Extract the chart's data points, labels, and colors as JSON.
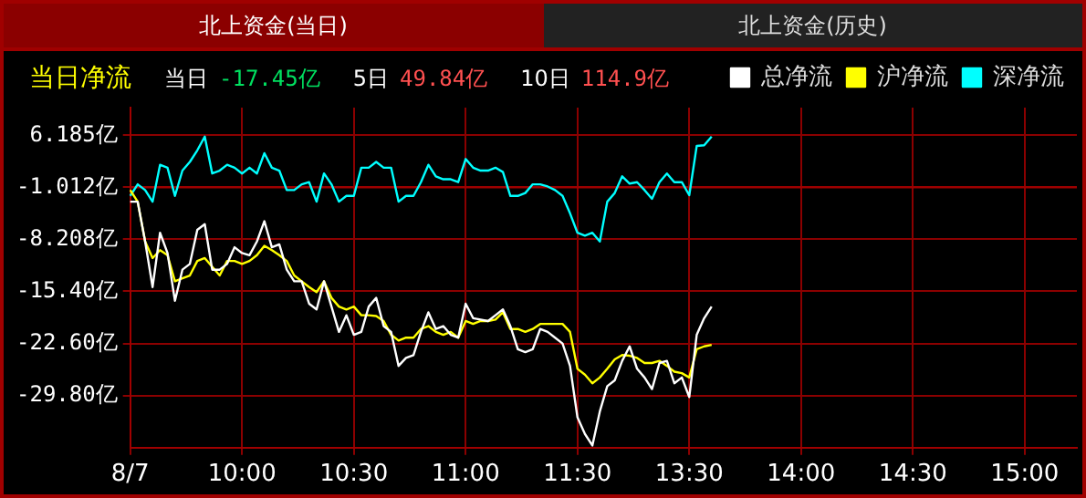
{
  "chart_data": {
    "type": "line",
    "title": "当日净流",
    "annotations": [
      "北上资金(当日)",
      "北上资金(历史)",
      "当日",
      "-17.45亿",
      "5日",
      "49.84亿",
      "10日",
      "114.9亿"
    ],
    "categories": [
      "8/7",
      null,
      null,
      null,
      null,
      null,
      null,
      null,
      null,
      null,
      null,
      null,
      null,
      null,
      null,
      "10:00",
      null,
      null,
      null,
      null,
      null,
      null,
      null,
      null,
      null,
      null,
      null,
      null,
      null,
      null,
      "10:30",
      null,
      null,
      null,
      null,
      null,
      null,
      null,
      null,
      null,
      null,
      null,
      null,
      null,
      null,
      "11:00",
      null,
      null,
      null,
      null,
      null,
      null,
      null,
      null,
      null,
      null,
      null,
      null,
      null,
      null,
      "11:30",
      null,
      null,
      null,
      null,
      null,
      null,
      null,
      null,
      null,
      null,
      null,
      null,
      null,
      null,
      "13:30",
      null,
      null,
      null,
      null,
      null,
      null,
      null,
      null,
      null,
      null,
      null,
      null,
      null,
      null,
      "14:00",
      null,
      null,
      null,
      null,
      null,
      null,
      null,
      null,
      null,
      null,
      null,
      null,
      null,
      null,
      "14:30",
      null,
      null,
      null,
      null,
      null,
      null,
      null,
      null,
      null,
      null,
      null,
      null,
      null,
      null,
      "15:00",
      null,
      null,
      null,
      null,
      null,
      null,
      null
    ],
    "ylim": [
      -37,
      10
    ],
    "yticks": [
      {
        "value": 6.185,
        "label": "6.185亿"
      },
      {
        "value": -1.012,
        "label": "-1.012亿"
      },
      {
        "value": -8.208,
        "label": "-8.208亿"
      },
      {
        "value": -15.4,
        "label": "-15.40亿"
      },
      {
        "value": -22.6,
        "label": "-22.60亿"
      },
      {
        "value": -29.8,
        "label": "-29.80亿"
      }
    ],
    "ref_lines": [
      {
        "axis": "y",
        "value": -1.012,
        "color": "#a00000"
      }
    ],
    "grid": true,
    "legend": "top right",
    "marker": "none",
    "line_style": "solid",
    "series": [
      {
        "name": "总净流",
        "color": "#ffffff",
        "values": [
          -3.0,
          -3.0,
          -8.5,
          -14.8,
          -7.3,
          -10.1,
          -16.7,
          -12.4,
          -11.6,
          -6.9,
          -6.1,
          -12.4,
          -12.4,
          -11.6,
          -9.3,
          -10.1,
          -10.4,
          -8.5,
          -5.7,
          -9.3,
          -8.9,
          -12.4,
          -14.0,
          -14.0,
          -17.1,
          -17.9,
          -14.0,
          -17.5,
          -21.0,
          -18.7,
          -21.4,
          -21.0,
          -17.5,
          -16.3,
          -20.2,
          -21.0,
          -25.7,
          -24.6,
          -24.2,
          -21.0,
          -18.3,
          -20.6,
          -20.2,
          -21.4,
          -21.8,
          -17.1,
          -19.1,
          -19.3,
          -19.5,
          -18.7,
          -17.9,
          -20.2,
          -23.4,
          -23.8,
          -23.4,
          -20.6,
          -21.0,
          -21.8,
          -22.6,
          -25.7,
          -32.8,
          -35.1,
          -36.7,
          -32.0,
          -28.5,
          -27.7,
          -25.0,
          -23.0,
          -26.1,
          -27.3,
          -28.9,
          -25.3,
          -25.0,
          -28.1,
          -27.3,
          -30.0,
          -21.4,
          -19.1,
          -17.5,
          null,
          null,
          null,
          null,
          null,
          null,
          null,
          null,
          null,
          null,
          null,
          null,
          null,
          null,
          null,
          null,
          null,
          null,
          null,
          null,
          null,
          null,
          null,
          null,
          null,
          null,
          null,
          null,
          null,
          null,
          null,
          null,
          null,
          null,
          null,
          null,
          null,
          null,
          null,
          null,
          null,
          null,
          null,
          null,
          null,
          null,
          null,
          null,
          null
        ]
      },
      {
        "name": "沪净流",
        "color": "#ffff00",
        "values": [
          -1.4,
          -3.0,
          -8.5,
          -10.8,
          -9.7,
          -10.4,
          -14.0,
          -13.6,
          -13.2,
          -11.2,
          -10.8,
          -12.0,
          -13.2,
          -11.2,
          -11.2,
          -11.6,
          -11.2,
          -10.4,
          -9.1,
          -9.7,
          -10.4,
          -11.2,
          -13.2,
          -14.0,
          -14.8,
          -15.5,
          -14.0,
          -16.3,
          -17.5,
          -17.9,
          -17.5,
          -18.7,
          -18.7,
          -18.8,
          -19.5,
          -21.4,
          -22.2,
          -21.8,
          -21.8,
          -20.6,
          -20.2,
          -21.0,
          -21.4,
          -21.0,
          -21.8,
          -19.5,
          -19.9,
          -19.5,
          -19.5,
          -19.3,
          -18.3,
          -20.6,
          -20.6,
          -21.0,
          -20.6,
          -19.9,
          -19.9,
          -19.9,
          -19.9,
          -21.0,
          -26.1,
          -26.9,
          -28.1,
          -27.3,
          -26.1,
          -24.8,
          -24.2,
          -24.3,
          -24.6,
          -25.3,
          -25.3,
          -25.0,
          -25.7,
          -26.5,
          -26.7,
          -27.3,
          -23.4,
          -23.0,
          -22.8,
          null,
          null,
          null,
          null,
          null,
          null,
          null,
          null,
          null,
          null,
          null,
          null,
          null,
          null,
          null,
          null,
          null,
          null,
          null,
          null,
          null,
          null,
          null,
          null,
          null,
          null,
          null,
          null,
          null,
          null,
          null,
          null,
          null,
          null,
          null,
          null,
          null,
          null,
          null,
          null,
          null,
          null,
          null,
          null,
          null,
          null,
          null,
          null,
          null
        ]
      },
      {
        "name": "深净流",
        "color": "#00ffff",
        "values": [
          -2.2,
          -0.6,
          -1.4,
          -3.0,
          2.1,
          1.7,
          -2.2,
          1.3,
          2.5,
          4.1,
          6.0,
          0.9,
          1.3,
          2.1,
          1.7,
          0.9,
          1.7,
          0.9,
          3.7,
          1.7,
          1.3,
          -1.4,
          -1.4,
          -0.6,
          -0.3,
          -3.0,
          0.9,
          -0.6,
          -3.0,
          -2.2,
          -2.2,
          1.7,
          1.7,
          2.5,
          1.7,
          1.7,
          -3.0,
          -2.2,
          -2.2,
          -0.3,
          2.1,
          0.5,
          0.1,
          0.1,
          -0.3,
          2.9,
          1.7,
          1.3,
          1.3,
          1.7,
          1.1,
          -2.2,
          -2.2,
          -1.8,
          -0.6,
          -0.6,
          -0.9,
          -1.4,
          -2.2,
          -4.6,
          -7.3,
          -7.7,
          -7.3,
          -8.5,
          -3.0,
          -1.8,
          0.5,
          -0.5,
          -0.3,
          -1.4,
          -2.6,
          -0.3,
          0.9,
          -0.3,
          -0.3,
          -2.1,
          4.7,
          4.8,
          6.0,
          null,
          null,
          null,
          null,
          null,
          null,
          null,
          null,
          null,
          null,
          null,
          null,
          null,
          null,
          null,
          null,
          null,
          null,
          null,
          null,
          null,
          null,
          null,
          null,
          null,
          null,
          null,
          null,
          null,
          null,
          null,
          null,
          null,
          null,
          null,
          null,
          null,
          null,
          null,
          null,
          null,
          null,
          null,
          null,
          null,
          null,
          null,
          null,
          null
        ]
      }
    ]
  }
}
